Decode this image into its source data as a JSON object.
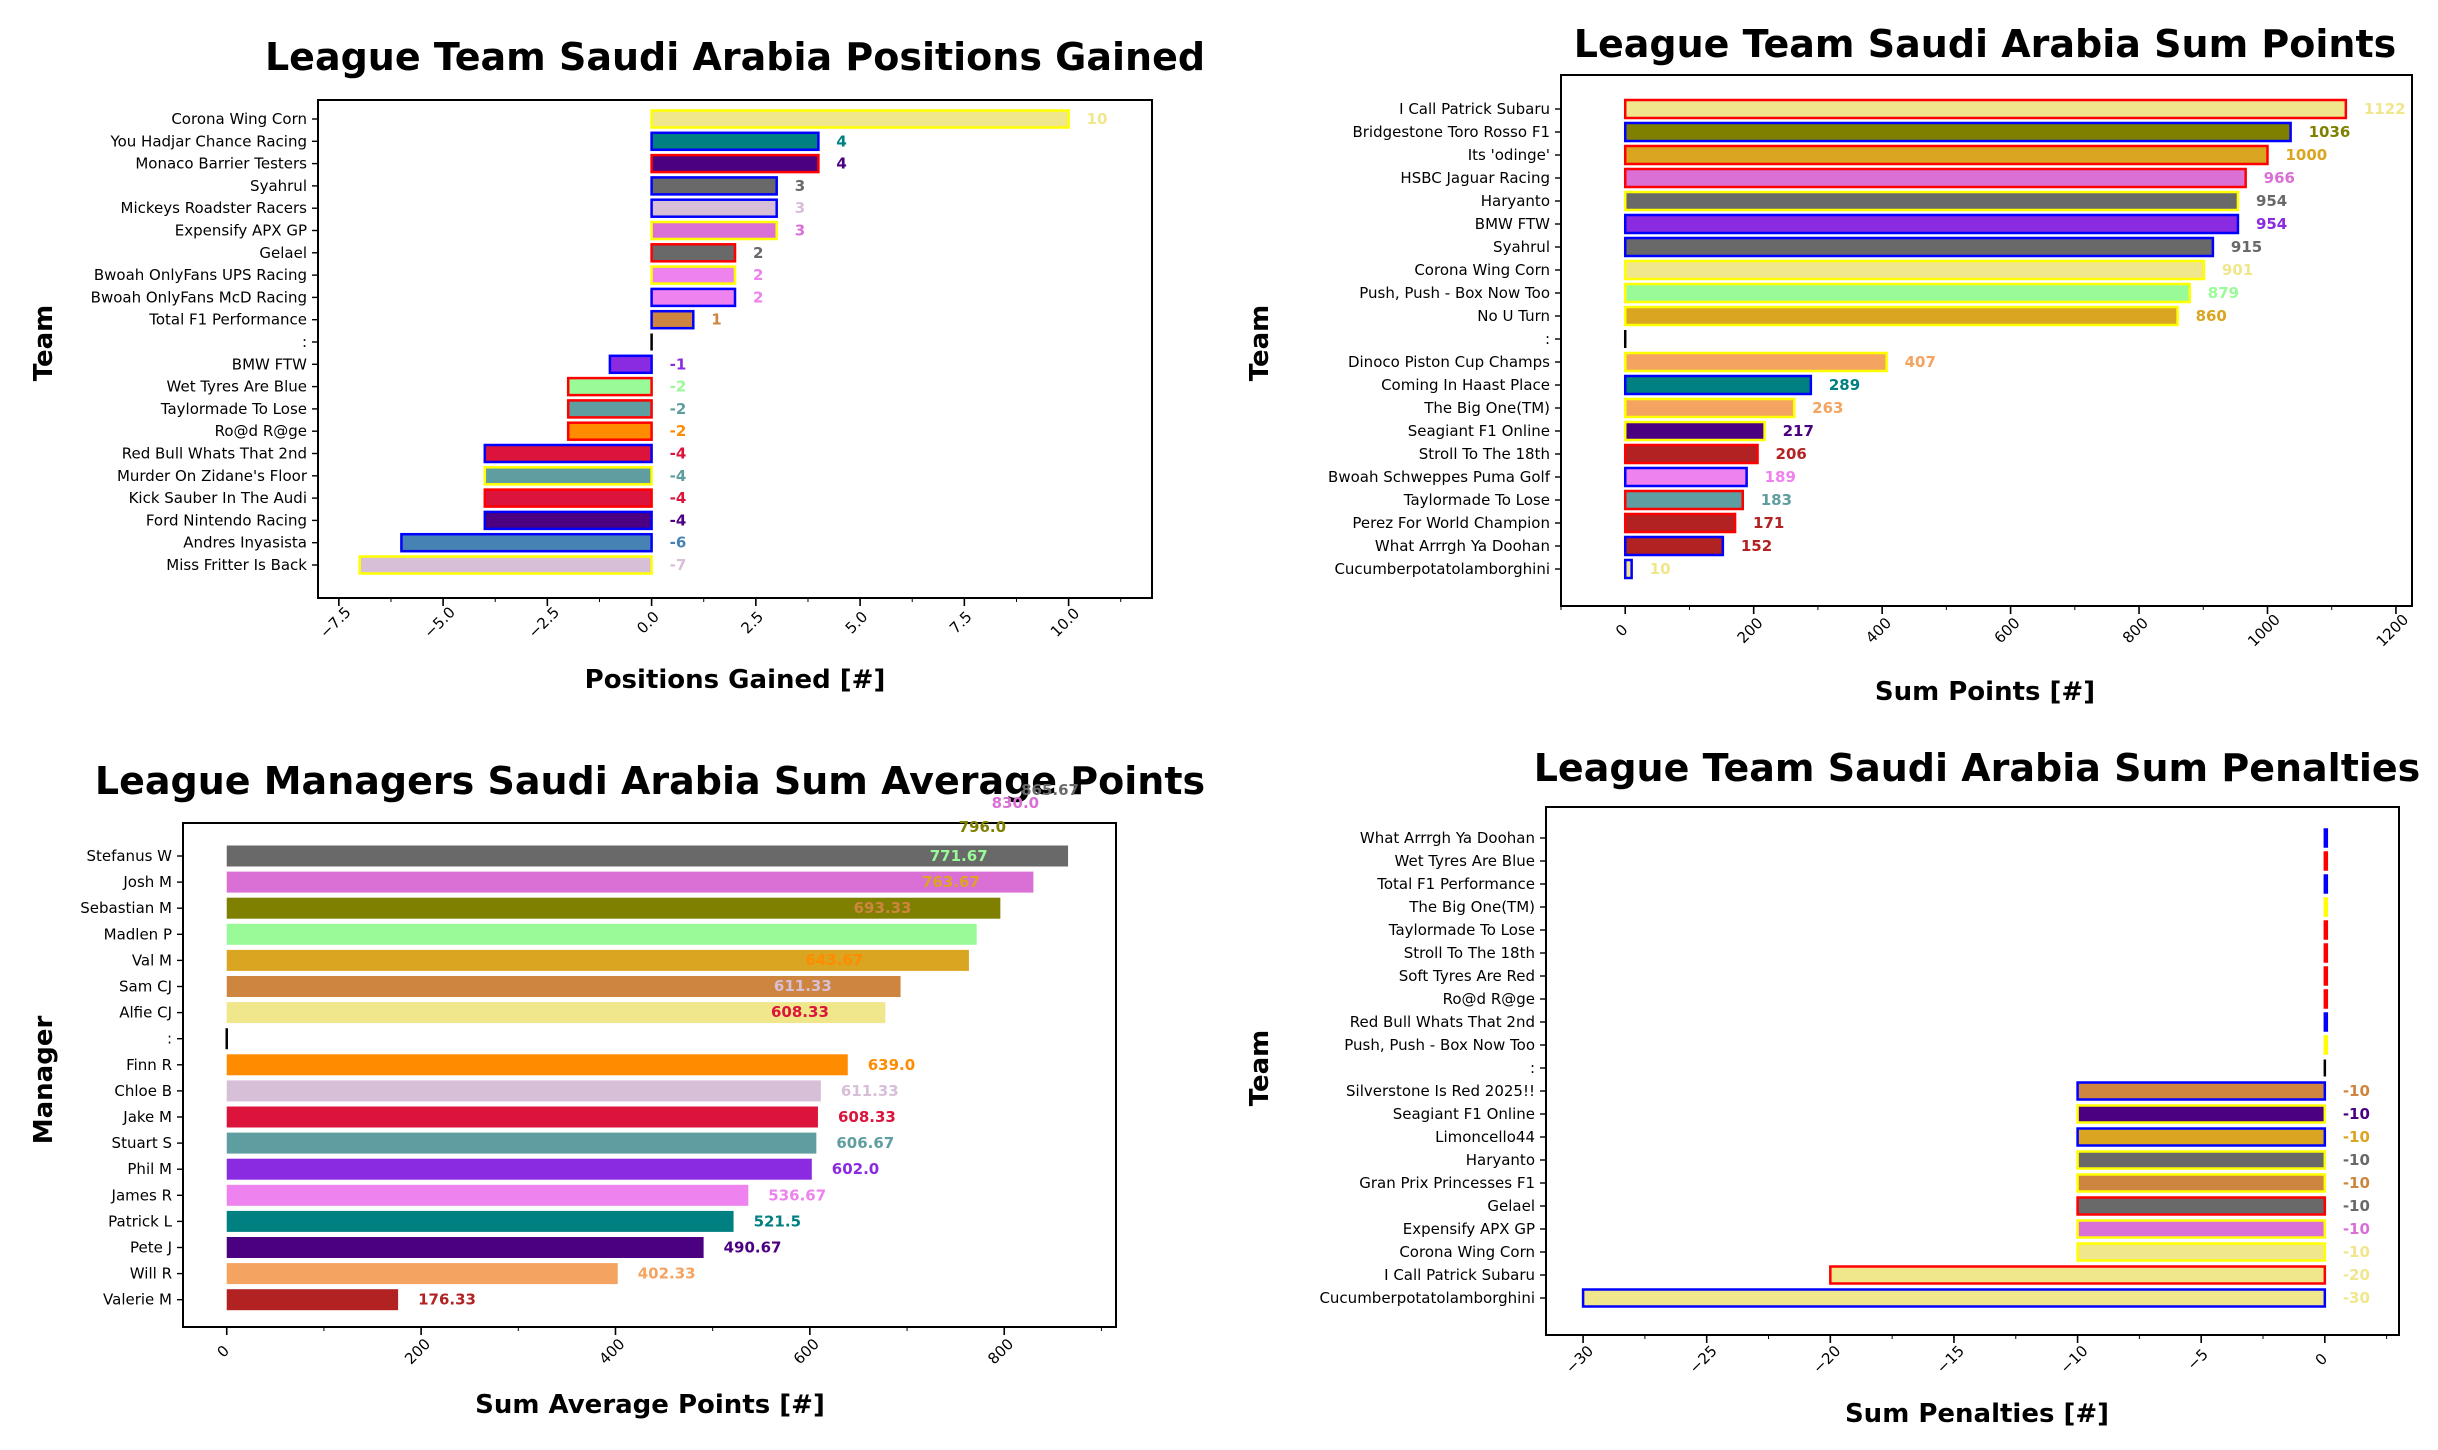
{
  "chart_data": [
    {
      "type": "bar",
      "orientation": "horizontal",
      "title": "League Team Saudi Arabia Positions Gained",
      "xlabel": "Positions Gained [#]",
      "ylabel": "Team",
      "xlim": [
        -8,
        12
      ],
      "xticks": [
        -7.5,
        -5.0,
        -2.5,
        0.0,
        2.5,
        5.0,
        7.5,
        10.0
      ],
      "xtick_labels": [
        "−7.5",
        "−5.0",
        "−2.5",
        "0.0",
        "2.5",
        "5.0",
        "7.5",
        "10.0"
      ],
      "grid": false,
      "categories": [
        "Corona Wing Corn",
        "You Hadjar Chance Racing",
        "Monaco Barrier Testers",
        "Syahrul",
        "Mickeys Roadster Racers",
        "Expensify APX GP",
        "Gelael",
        "Bwoah OnlyFans UPS Racing",
        "Bwoah OnlyFans McD Racing",
        "Total F1 Performance",
        ":",
        "BMW FTW",
        "Wet Tyres Are Blue",
        "Taylormade To Lose",
        "Ro@d R@ge",
        "Red Bull Whats That 2nd",
        "Murder On Zidane's Floor",
        "Kick Sauber In The Audi",
        "Ford Nintendo Racing",
        "Andres Inyasista",
        "Miss Fritter Is Back"
      ],
      "values": [
        10,
        4,
        4,
        3,
        3,
        3,
        2,
        2,
        2,
        1,
        0,
        -1,
        -2,
        -2,
        -2,
        -4,
        -4,
        -4,
        -4,
        -6,
        -7
      ],
      "labels": [
        "10",
        "4",
        "4",
        "3",
        "3",
        "3",
        "2",
        "2",
        "2",
        "1",
        "",
        "-1",
        "-2",
        "-2",
        "-2",
        "-4",
        "-4",
        "-4",
        "-4",
        "-6",
        "-7"
      ],
      "colors": [
        "#f0e68c",
        "#008080",
        "#4b0082",
        "#696969",
        "#d8bfd8",
        "#da70d6",
        "#696969",
        "#ee82ee",
        "#ee82ee",
        "#cd853f",
        "#000000",
        "#8a2be2",
        "#98fb98",
        "#5f9ea0",
        "#ff8c00",
        "#dc143c",
        "#5f9ea0",
        "#dc143c",
        "#4b0082",
        "#4682b4",
        "#d8bfd8"
      ],
      "edgecolors": [
        "#ffff00",
        "#0000ff",
        "#ff0000",
        "#0000ff",
        "#0000ff",
        "#ffff00",
        "#ff0000",
        "#ffff00",
        "#0000ff",
        "#0000ff",
        "#000000",
        "#0000ff",
        "#ff0000",
        "#ff0000",
        "#ff0000",
        "#0000ff",
        "#ffff00",
        "#ff0000",
        "#0000ff",
        "#0000ff",
        "#ffff00"
      ]
    },
    {
      "type": "bar",
      "orientation": "horizontal",
      "title": "League Team Saudi Arabia Sum Points",
      "xlabel": "Sum Points [#]",
      "ylabel": "Team",
      "xlim": [
        -100,
        1225
      ],
      "xticks": [
        0,
        200,
        400,
        600,
        800,
        1000,
        1200
      ],
      "xtick_labels": [
        "0",
        "200",
        "400",
        "600",
        "800",
        "1000",
        "1200"
      ],
      "grid": false,
      "categories": [
        "I Call Patrick Subaru",
        "Bridgestone Toro Rosso F1",
        "Its 'odinge'",
        "HSBC Jaguar Racing",
        "Haryanto",
        "BMW FTW",
        "Syahrul",
        "Corona Wing Corn",
        "Push, Push - Box Now Too",
        "No U Turn",
        ":",
        "Dinoco Piston Cup Champs",
        "Coming In Haast Place",
        "The Big One(TM)",
        "Seagiant F1 Online",
        "Stroll To The 18th",
        "Bwoah Schweppes Puma Golf",
        "Taylormade To Lose",
        "Perez For World Champion",
        "What Arrrgh Ya Doohan",
        "Cucumberpotatolamborghini"
      ],
      "values": [
        1122,
        1036,
        1000,
        966,
        954,
        954,
        915,
        901,
        879,
        860,
        0,
        407,
        289,
        263,
        217,
        206,
        189,
        183,
        171,
        152,
        10
      ],
      "labels": [
        "1122",
        "1036",
        "1000",
        "966",
        "954",
        "954",
        "915",
        "901",
        "879",
        "860",
        "",
        "407",
        "289",
        "263",
        "217",
        "206",
        "189",
        "183",
        "171",
        "152",
        "10"
      ],
      "colors": [
        "#f0e68c",
        "#808000",
        "#daa520",
        "#da70d6",
        "#696969",
        "#8a2be2",
        "#696969",
        "#f0e68c",
        "#98fb98",
        "#daa520",
        "#000000",
        "#f4a460",
        "#008080",
        "#f4a460",
        "#4b0082",
        "#b22222",
        "#ee82ee",
        "#5f9ea0",
        "#b22222",
        "#b22222",
        "#f0e68c"
      ],
      "edgecolors": [
        "#ff0000",
        "#0000ff",
        "#ff0000",
        "#ff0000",
        "#ffff00",
        "#0000ff",
        "#0000ff",
        "#ffff00",
        "#ffff00",
        "#ffff00",
        "#000000",
        "#ffff00",
        "#0000ff",
        "#ffff00",
        "#ffff00",
        "#ff0000",
        "#0000ff",
        "#ff0000",
        "#ff0000",
        "#0000ff",
        "#0000ff"
      ]
    },
    {
      "type": "bar",
      "orientation": "horizontal",
      "title": "League Managers Saudi Arabia Sum Average Points",
      "xlabel": "Sum Average Points [#]",
      "ylabel": "Manager",
      "xlim": [
        -45,
        915
      ],
      "xticks": [
        0,
        200,
        400,
        600,
        800
      ],
      "xtick_labels": [
        "0",
        "200",
        "400",
        "600",
        "800"
      ],
      "grid": false,
      "categories": [
        "Stefanus W",
        "Josh M",
        "Sebastian M",
        "Madlen P",
        "Val M",
        "Sam CJ",
        "Alfie CJ",
        ":",
        "Finn R",
        "Chloe B",
        "Jake M",
        "Stuart S",
        "Phil M",
        "James R",
        "Patrick L",
        "Pete J",
        "Will R",
        "Valerie M"
      ],
      "values": [
        865.67,
        830.0,
        796.0,
        771.67,
        763.67,
        693.33,
        677.67,
        0,
        639.0,
        611.33,
        608.33,
        606.67,
        602.0,
        536.67,
        521.5,
        490.67,
        402.33,
        176.33
      ],
      "labels": [
        "865.67",
        "830.0",
        "796.0",
        "771.67",
        "763.67",
        "693.33",
        "677.67",
        "",
        "639.0",
        "611.33",
        "608.33",
        "606.67",
        "602.0",
        "536.67",
        "521.5",
        "490.67",
        "402.33",
        "176.33"
      ],
      "colors": [
        "#696969",
        "#da70d6",
        "#808000",
        "#98fb98",
        "#daa520",
        "#cd853f",
        "#f0e68c",
        "#000000",
        "#ff8c00",
        "#d8bfd8",
        "#dc143c",
        "#5f9ea0",
        "#8a2be2",
        "#ee82ee",
        "#008080",
        "#4b0082",
        "#f4a460",
        "#b22222"
      ],
      "overlay_labels": [
        {
          "text": "865.67",
          "x": 865.67,
          "row": -3.1,
          "color": "#696969"
        },
        {
          "text": "830.0",
          "x": 830.0,
          "row": -2.1,
          "color": "#da70d6"
        },
        {
          "text": "796.0",
          "x": 796.0,
          "row": -1.1,
          "color": "#808000"
        },
        {
          "text": "771.67",
          "x": 771.67,
          "row": 0.0,
          "color": "#98fb98"
        },
        {
          "text": "763.67",
          "x": 763.67,
          "row": 1.0,
          "color": "#daa520"
        },
        {
          "text": "693.33",
          "x": 693.33,
          "row": 2.0,
          "color": "#cd853f"
        },
        {
          "text": "677.67",
          "x": 677.67,
          "row": 3.0,
          "color": "#98fb98"
        },
        {
          "text": "639.0",
          "x": 639.0,
          "row": 4.0,
          "color": "#ff8c00"
        },
        {
          "text": "611.33",
          "x": 611.33,
          "row": 5.0,
          "color": "#d8bfd8"
        },
        {
          "text": "608.33",
          "x": 608.33,
          "row": 6.0,
          "color": "#dc143c"
        }
      ]
    },
    {
      "type": "bar",
      "orientation": "horizontal",
      "title": "League Team Saudi Arabia Sum Penalties",
      "xlabel": "Sum Penalties [#]",
      "ylabel": "Team",
      "xlim": [
        -31.5,
        3.0
      ],
      "xticks": [
        -30,
        -25,
        -20,
        -15,
        -10,
        -5,
        0
      ],
      "xtick_labels": [
        "−30",
        "−25",
        "−20",
        "−15",
        "−10",
        "−5",
        "0"
      ],
      "grid": false,
      "categories": [
        "What Arrrgh Ya Doohan",
        "Wet Tyres Are Blue",
        "Total F1 Performance",
        "The Big One(TM)",
        "Taylormade To Lose",
        "Stroll To The 18th",
        "Soft Tyres Are Red",
        "Ro@d R@ge",
        "Red Bull Whats That 2nd",
        "Push, Push - Box Now Too",
        ":",
        "Silverstone Is Red 2025!!",
        "Seagiant F1 Online",
        "Limoncello44",
        "Haryanto",
        "Gran Prix Princesses F1",
        "Gelael",
        "Expensify APX GP",
        "Corona Wing Corn",
        "I Call Patrick Subaru",
        "Cucumberpotatolamborghini"
      ],
      "values": [
        0,
        0,
        0,
        0,
        0,
        0,
        0,
        0,
        0,
        0,
        0,
        -10,
        -10,
        -10,
        -10,
        -10,
        -10,
        -10,
        -10,
        -20,
        -30
      ],
      "labels": [
        "",
        "",
        "",
        "",
        "",
        "",
        "",
        "",
        "",
        "",
        "",
        "-10",
        "-10",
        "-10",
        "-10",
        "-10",
        "-10",
        "-10",
        "-10",
        "-20",
        "-30"
      ],
      "colors": [
        "#0000ff",
        "#ff0000",
        "#0000ff",
        "#ffff00",
        "#ff0000",
        "#ff0000",
        "#ff0000",
        "#ff0000",
        "#0000ff",
        "#ffff00",
        "#000000",
        "#cd853f",
        "#4b0082",
        "#daa520",
        "#696969",
        "#cd853f",
        "#696969",
        "#da70d6",
        "#f0e68c",
        "#f0e68c",
        "#f0e68c"
      ],
      "edgecolors": [
        "#0000ff",
        "#ff0000",
        "#0000ff",
        "#ffff00",
        "#ff0000",
        "#ff0000",
        "#ff0000",
        "#ff0000",
        "#0000ff",
        "#ffff00",
        "#000000",
        "#0000ff",
        "#ffff00",
        "#0000ff",
        "#ffff00",
        "#ffff00",
        "#ff0000",
        "#ffff00",
        "#ffff00",
        "#ff0000",
        "#0000ff"
      ]
    }
  ]
}
